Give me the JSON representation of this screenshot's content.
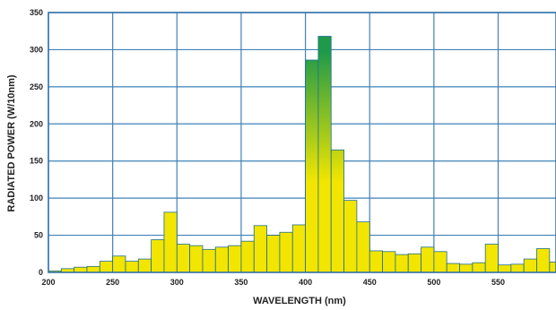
{
  "chart_data": {
    "type": "bar",
    "title": "",
    "xlabel": "WAVELENGTH (nm)",
    "ylabel": "RADIATED POWER (W/10nm)",
    "xlim": [
      200,
      595
    ],
    "ylim": [
      0,
      350
    ],
    "xticks": [
      200,
      250,
      300,
      350,
      400,
      450,
      500,
      550
    ],
    "yticks": [
      0,
      50,
      100,
      150,
      200,
      250,
      300,
      350
    ],
    "grid": true,
    "bin_width": 10,
    "x": [
      200,
      210,
      220,
      230,
      240,
      250,
      260,
      270,
      280,
      290,
      300,
      310,
      320,
      330,
      340,
      350,
      360,
      370,
      380,
      390,
      400,
      410,
      420,
      430,
      440,
      450,
      460,
      470,
      480,
      490,
      500,
      510,
      520,
      530,
      540,
      550,
      560,
      570,
      580,
      590
    ],
    "values": [
      2,
      5,
      7,
      8,
      15,
      22,
      15,
      18,
      44,
      81,
      38,
      36,
      31,
      34,
      36,
      42,
      63,
      50,
      54,
      64,
      286,
      318,
      165,
      97,
      68,
      29,
      28,
      24,
      25,
      34,
      28,
      12,
      11,
      13,
      38,
      10,
      11,
      18,
      32,
      14
    ],
    "colors": {
      "bar_bottom": "#f2e500",
      "bar_top": "#1f9a4a",
      "bar_stroke": "#1f6f8f",
      "grid": "#3f82b9",
      "frame": "#2a6fa8"
    }
  }
}
